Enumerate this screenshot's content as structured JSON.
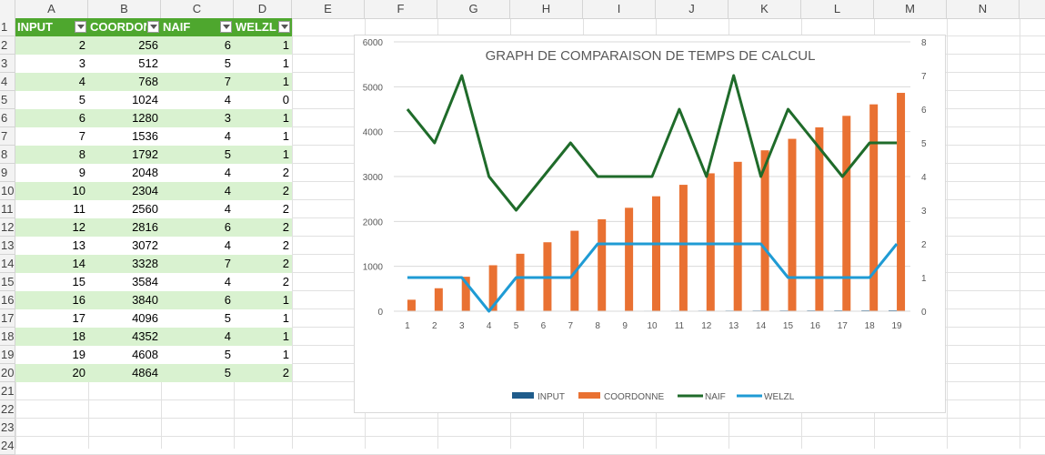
{
  "columns": [
    "A",
    "B",
    "C",
    "D",
    "E",
    "F",
    "G",
    "H",
    "I",
    "J",
    "K",
    "L",
    "M",
    "N"
  ],
  "rows": [
    "1",
    "2",
    "3",
    "4",
    "5",
    "6",
    "7",
    "8",
    "9",
    "10",
    "11",
    "12",
    "13",
    "14",
    "15",
    "16",
    "17",
    "18",
    "19",
    "20",
    "21",
    "22",
    "23",
    "24"
  ],
  "table": {
    "headers": [
      "INPUT",
      "COORDONNE",
      "NAIF",
      "WELZL"
    ],
    "header_color": "#4ea72e",
    "band_color": "#d9f2d0",
    "rows": [
      [
        "2",
        "256",
        "6",
        "1"
      ],
      [
        "3",
        "512",
        "5",
        "1"
      ],
      [
        "4",
        "768",
        "7",
        "1"
      ],
      [
        "5",
        "1024",
        "4",
        "0"
      ],
      [
        "6",
        "1280",
        "3",
        "1"
      ],
      [
        "7",
        "1536",
        "4",
        "1"
      ],
      [
        "8",
        "1792",
        "5",
        "1"
      ],
      [
        "9",
        "2048",
        "4",
        "2"
      ],
      [
        "10",
        "2304",
        "4",
        "2"
      ],
      [
        "11",
        "2560",
        "4",
        "2"
      ],
      [
        "12",
        "2816",
        "6",
        "2"
      ],
      [
        "13",
        "3072",
        "4",
        "2"
      ],
      [
        "14",
        "3328",
        "7",
        "2"
      ],
      [
        "15",
        "3584",
        "4",
        "2"
      ],
      [
        "16",
        "3840",
        "6",
        "1"
      ],
      [
        "17",
        "4096",
        "5",
        "1"
      ],
      [
        "18",
        "4352",
        "4",
        "1"
      ],
      [
        "19",
        "4608",
        "5",
        "1"
      ],
      [
        "20",
        "4864",
        "5",
        "2"
      ]
    ]
  },
  "chart_data": {
    "type": "bar",
    "title": "GRAPH DE COMPARAISON DE TEMPS DE CALCUL",
    "categories": [
      "1",
      "2",
      "3",
      "4",
      "5",
      "6",
      "7",
      "8",
      "9",
      "10",
      "11",
      "12",
      "13",
      "14",
      "15",
      "16",
      "17",
      "18",
      "19"
    ],
    "ylim": [
      0,
      6000
    ],
    "yticks": [
      "0",
      "1000",
      "2000",
      "3000",
      "4000",
      "5000",
      "6000"
    ],
    "y2lim": [
      0,
      8
    ],
    "y2ticks": [
      "0",
      "1",
      "2",
      "3",
      "4",
      "5",
      "6",
      "7",
      "8"
    ],
    "legend_position": "bottom",
    "series": [
      {
        "name": "INPUT",
        "type": "bar",
        "axis": "primary",
        "color": "#1f5c8b",
        "values": [
          2,
          3,
          4,
          5,
          6,
          7,
          8,
          9,
          10,
          11,
          12,
          13,
          14,
          15,
          16,
          17,
          18,
          19,
          20
        ]
      },
      {
        "name": "COORDONNE",
        "type": "bar",
        "axis": "primary",
        "color": "#e97132",
        "values": [
          256,
          512,
          768,
          1024,
          1280,
          1536,
          1792,
          2048,
          2304,
          2560,
          2816,
          3072,
          3328,
          3584,
          3840,
          4096,
          4352,
          4608,
          4864
        ]
      },
      {
        "name": "NAIF",
        "type": "line",
        "axis": "secondary",
        "color": "#1f6b2a",
        "values": [
          6,
          5,
          7,
          4,
          3,
          4,
          5,
          4,
          4,
          4,
          6,
          4,
          7,
          4,
          6,
          5,
          4,
          5,
          5
        ]
      },
      {
        "name": "WELZL",
        "type": "line",
        "axis": "secondary",
        "color": "#1f9bd4",
        "values": [
          1,
          1,
          1,
          0,
          1,
          1,
          1,
          2,
          2,
          2,
          2,
          2,
          2,
          2,
          1,
          1,
          1,
          1,
          2
        ]
      }
    ]
  }
}
